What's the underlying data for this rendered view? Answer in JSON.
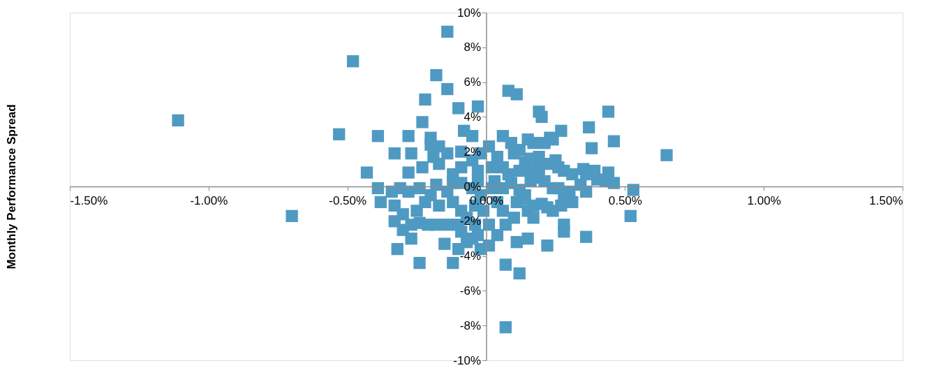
{
  "chart_data": {
    "type": "scatter",
    "ylabel": "Monthly Performance Spread",
    "xlim": [
      -1.5,
      1.5
    ],
    "xticks": [
      {
        "value": -1.5,
        "label": "-1.50%"
      },
      {
        "value": -1.0,
        "label": "-1.00%"
      },
      {
        "value": -0.5,
        "label": "-0.50%"
      },
      {
        "value": 0,
        "label": "0.00%"
      },
      {
        "value": 0.5,
        "label": "0.50%"
      },
      {
        "value": 1.0,
        "label": "1.00%"
      },
      {
        "value": 1.5,
        "label": "1.50%"
      }
    ],
    "ylim": [
      -10,
      10
    ],
    "yticks": [
      {
        "value": -10,
        "label": "-10%"
      },
      {
        "value": -8,
        "label": "-8%"
      },
      {
        "value": -6,
        "label": "-6%"
      },
      {
        "value": -4,
        "label": "-4%"
      },
      {
        "value": -2,
        "label": "-2%"
      },
      {
        "value": 0,
        "label": "0%"
      },
      {
        "value": 2,
        "label": "2%"
      },
      {
        "value": 4,
        "label": "4%"
      },
      {
        "value": 6,
        "label": "6%"
      },
      {
        "value": 8,
        "label": "8%"
      },
      {
        "value": 10,
        "label": "10%"
      }
    ],
    "marker": "square",
    "grid": false,
    "series": [
      {
        "color": "#4f9ac2",
        "x": [
          -1.11,
          -0.48,
          -0.14,
          -0.7,
          -0.53,
          -0.18,
          -0.22,
          -0.39,
          -0.43,
          -0.33,
          -0.14,
          -0.1,
          -0.03,
          0.08,
          0.11,
          0.44,
          0.19,
          0.2,
          0.37,
          0.65,
          0.46,
          0.38,
          0.53,
          0.52,
          0.36,
          0.28,
          0.28,
          0.22,
          0.15,
          0.11,
          0.07,
          0.12,
          0.07,
          -0.32,
          -0.24,
          -0.12,
          -0.15,
          -0.27,
          -0.3,
          -0.33,
          -0.39,
          -0.38,
          -0.28,
          -0.27,
          -0.28,
          -0.23,
          -0.2,
          -0.23,
          -0.2,
          -0.17,
          -0.17,
          -0.14,
          -0.19,
          -0.09,
          -0.08,
          -0.05,
          -0.09,
          -0.12,
          -0.05,
          -0.02,
          -0.03,
          -0.24,
          -0.28,
          -0.31,
          -0.34,
          -0.33,
          -0.3,
          -0.25,
          -0.22,
          -0.2,
          -0.17,
          -0.14,
          -0.18,
          -0.12,
          -0.09,
          -0.07,
          -0.04,
          -0.03,
          -0.02,
          -0.05,
          -0.09,
          -0.1,
          -0.14,
          -0.18,
          -0.21,
          -0.24,
          -0.27,
          -0.1,
          -0.07,
          -0.03,
          -0.05,
          -0.09,
          -0.12,
          -0.02,
          -0.04,
          -0.01,
          0.06,
          0.09,
          0.01,
          0.04,
          0.06,
          0.1,
          0.12,
          0.14,
          0.16,
          0.19,
          0.22,
          0.25,
          0.21,
          0.17,
          0.15,
          0.24,
          0.27,
          0.23,
          0.16,
          0.19,
          0.21,
          0.24,
          0.26,
          0.28,
          0.31,
          0.35,
          0.36,
          0.39,
          0.4,
          0.43,
          0.44,
          0.46,
          0.26,
          0.28,
          0.27,
          0.31,
          0.34,
          0.3,
          0.36,
          0.14,
          0.11,
          0.15,
          0.17,
          0.2,
          0.22,
          0.24,
          0.17,
          0.1,
          0.06,
          0.04,
          0.01,
          0.04,
          0.01,
          0.07,
          0.13,
          0.12,
          0.09,
          0.06,
          0.03,
          0.16,
          0.19,
          0.12,
          0.08,
          0.02,
          0.02
        ],
        "values": [
          3.8,
          7.2,
          8.9,
          -1.7,
          3.0,
          6.4,
          5.0,
          2.9,
          0.8,
          1.9,
          5.6,
          4.5,
          4.6,
          5.5,
          5.3,
          4.3,
          4.3,
          4.0,
          3.4,
          1.8,
          2.6,
          2.2,
          -0.2,
          -1.7,
          -2.9,
          -2.2,
          -2.6,
          -3.4,
          -3.0,
          -3.2,
          -4.5,
          -5.0,
          -8.1,
          -3.6,
          -4.4,
          -4.4,
          -3.3,
          -3.0,
          -2.5,
          -2.0,
          -0.1,
          -0.9,
          2.9,
          1.9,
          0.8,
          1.1,
          2.8,
          3.7,
          2.4,
          2.3,
          1.3,
          1.9,
          1.7,
          2.0,
          3.2,
          2.9,
          1.1,
          0.7,
          1.5,
          1.9,
          0.9,
          -0.1,
          -0.3,
          -0.1,
          -0.3,
          -1.1,
          -1.6,
          -1.4,
          -0.9,
          -0.5,
          -1.1,
          -0.3,
          0.1,
          -0.9,
          -1.4,
          -1.8,
          -2.2,
          -2.8,
          -3.6,
          -3.0,
          -2.6,
          -2.2,
          -2.2,
          -2.2,
          -2.2,
          -2.1,
          -2.2,
          -3.6,
          -3.2,
          0.3,
          -0.1,
          0.2,
          0.2,
          -0.5,
          -1.1,
          -1.4,
          2.9,
          2.5,
          2.3,
          1.7,
          1.1,
          1.9,
          2.1,
          1.4,
          0.9,
          1.7,
          1.3,
          1.5,
          2.5,
          2.5,
          2.7,
          2.7,
          3.2,
          2.8,
          0.3,
          0.5,
          0.3,
          -0.1,
          1.1,
          0.9,
          0.7,
          1.0,
          0.7,
          0.9,
          0.4,
          0.3,
          0.8,
          0.2,
          -0.1,
          -0.5,
          -1.1,
          -0.9,
          0.1,
          -0.3,
          -0.3,
          -0.5,
          -0.9,
          -1.4,
          -1.1,
          -1.0,
          -1.2,
          -1.4,
          -1.8,
          -1.8,
          -1.4,
          -0.9,
          -2.2,
          -2.8,
          -3.4,
          -2.2,
          -0.7,
          -0.2,
          0.2,
          -0.1,
          0.3,
          1.6,
          1.1,
          0.9,
          0.7,
          1.1,
          -0.1
        ]
      }
    ]
  }
}
